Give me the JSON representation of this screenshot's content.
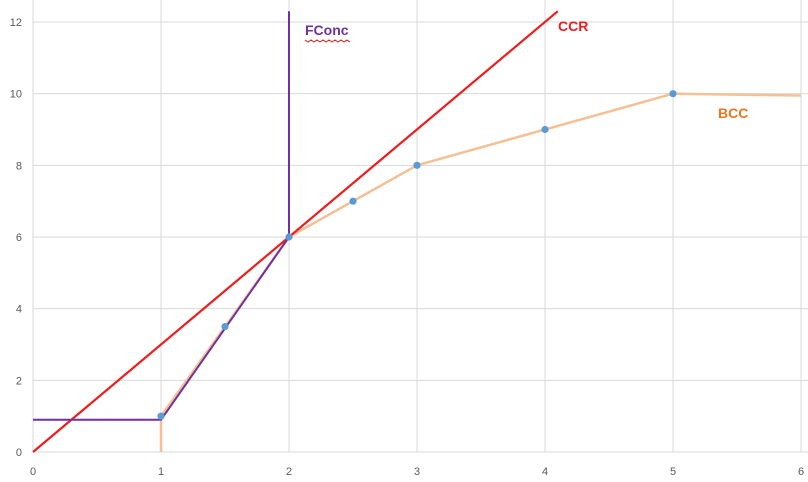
{
  "chart_data": {
    "type": "scatter",
    "title": "",
    "xlabel": "",
    "ylabel": "",
    "xlim": [
      0,
      6
    ],
    "ylim": [
      0,
      12
    ],
    "x_ticks": [
      "0",
      "1",
      "2",
      "3",
      "4",
      "5",
      "6"
    ],
    "y_ticks": [
      "0",
      "2",
      "4",
      "6",
      "8",
      "10",
      "12"
    ],
    "grid": true,
    "legend": "none",
    "points": {
      "x": [
        1,
        1.5,
        2,
        2.5,
        3,
        4,
        5
      ],
      "y": [
        1,
        3.5,
        6,
        7,
        8,
        9,
        10
      ],
      "color": "#5b9bd5"
    },
    "series": [
      {
        "name": "BCC",
        "color": "#f4c095",
        "x": [
          1,
          1,
          2,
          3,
          4,
          5,
          6
        ],
        "y": [
          0,
          1,
          6,
          8,
          9,
          10,
          9.95
        ]
      },
      {
        "name": "CCR",
        "color": "#ee1c1c",
        "x": [
          0,
          4.1
        ],
        "y": [
          0,
          12.3
        ]
      },
      {
        "name": "FConc",
        "color": "#7030a0",
        "x": [
          0,
          1,
          2,
          2
        ],
        "y": [
          0.9,
          0.9,
          6,
          12.3
        ]
      }
    ]
  }
}
